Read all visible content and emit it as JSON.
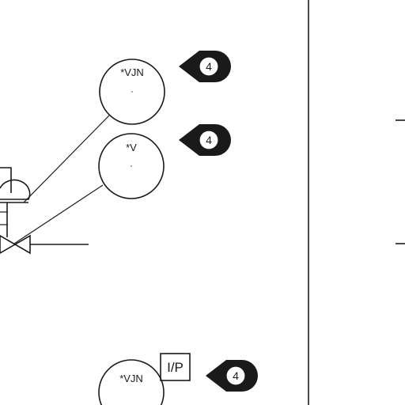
{
  "instruments": [
    {
      "tag": "*VJN"
    },
    {
      "tag": "*V"
    },
    {
      "tag": "*VJN"
    }
  ],
  "note_flags": [
    {
      "number": "4"
    },
    {
      "number": "4"
    },
    {
      "number": "4"
    }
  ],
  "converter": {
    "label": "I/P"
  }
}
